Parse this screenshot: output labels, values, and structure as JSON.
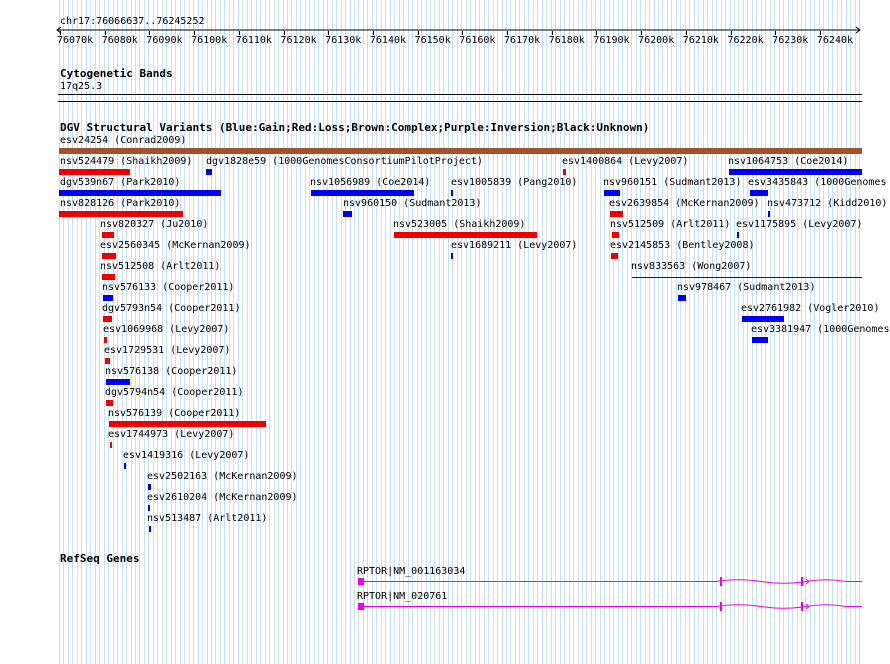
{
  "ruler": {
    "coordinate": "chr17:76066637..76245252",
    "ticks": [
      "76070k",
      "76080k",
      "76090k",
      "76100k",
      "76110k",
      "76120k",
      "76130k",
      "76140k",
      "76150k",
      "76160k",
      "76170k",
      "76180k",
      "76190k",
      "76200k",
      "76210k",
      "76220k",
      "76230k",
      "76240k"
    ]
  },
  "cytoband": {
    "title": "Cytogenetic Bands",
    "band": "17q25.3"
  },
  "dgv": {
    "title": "DGV Structural Variants (Blue:Gain;Red:Loss;Brown:Complex;Purple:Inversion;Black:Unknown)",
    "colors": {
      "gain": "#0000ee",
      "loss": "#ee0000",
      "complex": "#a0522d"
    },
    "features": [
      {
        "name": "esv24254 (Conrad2009)",
        "color": "complex"
      },
      {
        "name": "nsv524479 (Shaikh2009)",
        "color": "loss"
      },
      {
        "name": "dgv1828e59 (1000GenomesConsortiumPilotProject)",
        "color": "gain"
      },
      {
        "name": "esv1400864 (Levy2007)",
        "color": "loss"
      },
      {
        "name": "nsv1064753 (Coe2014)",
        "color": "gain"
      },
      {
        "name": "dgv539n67 (Park2010)",
        "color": "gain"
      },
      {
        "name": "nsv1056989 (Coe2014)",
        "color": "gain"
      },
      {
        "name": "esv1005839 (Pang2010)",
        "color": "gain"
      },
      {
        "name": "nsv960151 (Sudmant2013)",
        "color": "gain"
      },
      {
        "name": "esv3435843 (1000Genomes",
        "color": "gain"
      },
      {
        "name": "nsv828126 (Park2010)",
        "color": "loss"
      },
      {
        "name": "nsv960150 (Sudmant2013)",
        "color": "gain"
      },
      {
        "name": "esv2639854 (McKernan2009)",
        "color": "loss"
      },
      {
        "name": "nsv473712 (Kidd2010)",
        "color": "gain"
      },
      {
        "name": "nsv820327 (Ju2010)",
        "color": "loss"
      },
      {
        "name": "nsv523005 (Shaikh2009)",
        "color": "loss"
      },
      {
        "name": "nsv512509 (Arlt2011)",
        "color": "loss"
      },
      {
        "name": "esv1175895 (Levy2007)",
        "color": "gain"
      },
      {
        "name": "esv2560345 (McKernan2009)",
        "color": "loss"
      },
      {
        "name": "esv1689211 (Levy2007)",
        "color": "gain"
      },
      {
        "name": "esv2145853 (Bentley2008)",
        "color": "loss"
      },
      {
        "name": "nsv512508 (Arlt2011)",
        "color": "loss"
      },
      {
        "name": "nsv833563 (Wong2007)",
        "color": "gain"
      },
      {
        "name": "nsv576133 (Cooper2011)",
        "color": "gain"
      },
      {
        "name": "nsv978467 (Sudmant2013)",
        "color": "gain"
      },
      {
        "name": "dgv5793n54 (Cooper2011)",
        "color": "loss"
      },
      {
        "name": "esv2761982 (Vogler2010)",
        "color": "gain"
      },
      {
        "name": "esv1069968 (Levy2007)",
        "color": "loss"
      },
      {
        "name": "esv3381947 (1000Genomes",
        "color": "gain"
      },
      {
        "name": "esv1729531 (Levy2007)",
        "color": "loss"
      },
      {
        "name": "nsv576138 (Cooper2011)",
        "color": "gain"
      },
      {
        "name": "dgv5794n54 (Cooper2011)",
        "color": "loss"
      },
      {
        "name": "nsv576139 (Cooper2011)",
        "color": "loss"
      },
      {
        "name": "esv1744973 (Levy2007)",
        "color": "loss"
      },
      {
        "name": "esv1419316 (Levy2007)",
        "color": "gain"
      },
      {
        "name": "esv2502163 (McKernan2009)",
        "color": "gain"
      },
      {
        "name": "esv2610204 (McKernan2009)",
        "color": "gain"
      },
      {
        "name": "nsv513487 (Arlt2011)",
        "color": "gain"
      }
    ]
  },
  "refseq": {
    "title": "RefSeq Genes",
    "color": "#ee00ee",
    "transcripts": [
      {
        "name": "RPTOR|NM_001163034"
      },
      {
        "name": "RPTOR|NM_020761"
      }
    ]
  }
}
